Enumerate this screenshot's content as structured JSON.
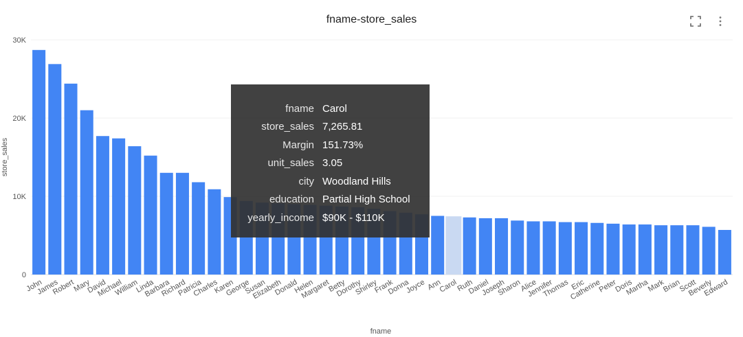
{
  "chart_data": {
    "type": "bar",
    "title": "fname-store_sales",
    "xlabel": "fname",
    "ylabel": "store_sales",
    "ylim": [
      0,
      30000
    ],
    "yticks": [
      "0",
      "10K",
      "20K",
      "30K"
    ],
    "ytick_values": [
      0,
      10000,
      20000,
      30000
    ],
    "grid": true,
    "bar_color": "#4285f4",
    "highlight_color": "#c9d9f2",
    "highlighted_category": "Carol",
    "categories": [
      "John",
      "James",
      "Robert",
      "Mary",
      "David",
      "Michael",
      "William",
      "Linda",
      "Barbara",
      "Richard",
      "Patricia",
      "Charles",
      "Karen",
      "George",
      "Susan",
      "Elizabeth",
      "Donald",
      "Helen",
      "Margaret",
      "Betty",
      "Dorothy",
      "Shirley",
      "Frank",
      "Donna",
      "Joyce",
      "Ann",
      "Carol",
      "Ruth",
      "Daniel",
      "Joseph",
      "Sharon",
      "Alice",
      "Jennifer",
      "Thomas",
      "Eric",
      "Catherine",
      "Peter",
      "Doris",
      "Martha",
      "Mark",
      "Brian",
      "Scott",
      "Beverly",
      "Edward"
    ],
    "values": [
      28700,
      26900,
      24400,
      21000,
      17700,
      17400,
      16400,
      15200,
      13000,
      13000,
      11800,
      10900,
      9900,
      9400,
      9200,
      9100,
      9000,
      8900,
      8800,
      8700,
      8600,
      8400,
      8100,
      7900,
      7700,
      7500,
      7265.81,
      7300,
      7200,
      7200,
      6900,
      6800,
      6800,
      6700,
      6700,
      6600,
      6500,
      6400,
      6400,
      6300,
      6300,
      6300,
      6100,
      5700
    ]
  },
  "tooltip": {
    "rows": [
      {
        "key": "fname",
        "value": "Carol"
      },
      {
        "key": "store_sales",
        "value": "7,265.81"
      },
      {
        "key": "Margin",
        "value": "151.73%"
      },
      {
        "key": "unit_sales",
        "value": "3.05"
      },
      {
        "key": "city",
        "value": "Woodland Hills"
      },
      {
        "key": "education",
        "value": "Partial High School"
      },
      {
        "key": "yearly_income",
        "value": "$90K - $110K"
      }
    ]
  },
  "toolbar": {
    "fullscreen_icon": "fullscreen-icon",
    "more_icon": "more-vertical-icon"
  }
}
